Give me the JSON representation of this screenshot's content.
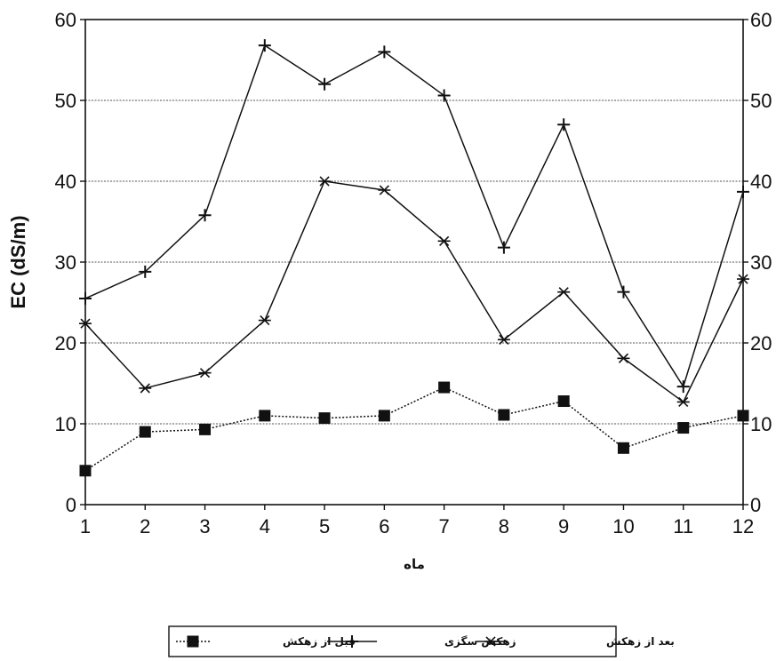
{
  "chart_data": {
    "type": "line",
    "xlabel": "ماه",
    "ylabel": "EC (dS/m)",
    "x": [
      1,
      2,
      3,
      4,
      5,
      6,
      7,
      8,
      9,
      10,
      11,
      12
    ],
    "xlim": [
      1,
      12
    ],
    "ylim": [
      0,
      60
    ],
    "yticks": [
      0,
      10,
      20,
      30,
      40,
      50,
      60
    ],
    "y2ticks": [
      0,
      10,
      20,
      30,
      40,
      50,
      60
    ],
    "grid": "horizontal",
    "legend_position": "bottom",
    "series": [
      {
        "name": "قبل از زهکش",
        "marker": "square",
        "line_style": "dotted",
        "values": [
          4.2,
          9.0,
          9.3,
          11.0,
          10.7,
          11.0,
          14.5,
          11.1,
          12.8,
          7.0,
          9.5,
          11.0
        ]
      },
      {
        "name": "زهکش سگزی",
        "marker": "plus",
        "line_style": "solid",
        "values": [
          25.5,
          28.8,
          35.8,
          56.8,
          52.0,
          56.0,
          50.6,
          31.8,
          47.0,
          26.3,
          14.6,
          38.7
        ]
      },
      {
        "name": "بعد از زهکش",
        "marker": "asterisk",
        "line_style": "solid",
        "values": [
          22.4,
          14.4,
          16.3,
          22.8,
          40.0,
          38.9,
          32.6,
          20.4,
          26.3,
          18.1,
          12.7,
          27.9
        ]
      }
    ]
  }
}
